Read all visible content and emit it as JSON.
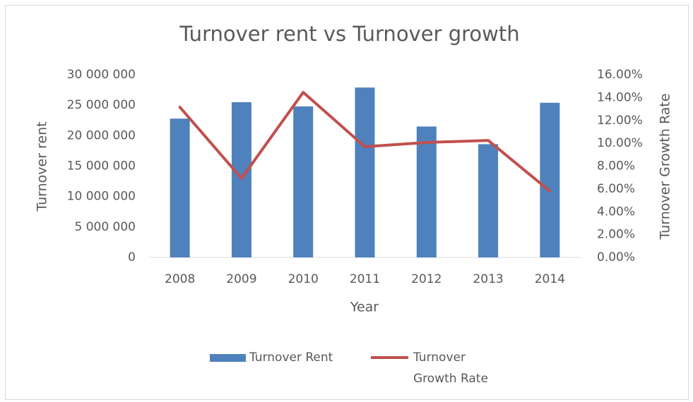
{
  "chart_data": {
    "type": "bar",
    "title": "Turnover rent vs Turnover growth",
    "x_label": "Year",
    "y_label": "Turnover rent",
    "y2_label": "Turnover Growth Rate",
    "categories": [
      "2008",
      "2009",
      "2010",
      "2011",
      "2012",
      "2013",
      "2014"
    ],
    "series": [
      {
        "name": "Turnover Rent",
        "color": "#4f81bd",
        "type": "bar",
        "values": [
          22800000,
          25500000,
          24800000,
          27900000,
          21500000,
          18600000,
          25400000
        ]
      },
      {
        "name": "Turnover Growth Rate",
        "color": "#c0504d",
        "type": "line",
        "axis": "y2",
        "values": [
          13.16,
          6.92,
          14.46,
          9.7,
          10.07,
          10.25,
          5.81
        ]
      }
    ],
    "ylim": [
      0,
      30000000
    ],
    "yticks": [
      0,
      {
        "value": 5000000,
        "label": "5 000 000"
      },
      {
        "value": 10000000,
        "label": "10 000 000"
      },
      {
        "value": 15000000,
        "label": "15 000 000"
      },
      {
        "value": 20000000,
        "label": "20 000 000"
      },
      {
        "value": 25000000,
        "label": "25 000 000"
      },
      {
        "value": 30000000,
        "label": "30 000 000"
      }
    ],
    "y2lim": [
      0,
      16
    ],
    "y2ticks": [
      {
        "value": 0,
        "label": "0.00%"
      },
      {
        "value": 2,
        "label": "2.00%"
      },
      {
        "value": 4,
        "label": "4.00%"
      },
      {
        "value": 6,
        "label": "6.00%"
      },
      {
        "value": 8,
        "label": "8.00%"
      },
      {
        "value": 10,
        "label": "10.00%"
      },
      {
        "value": 12,
        "label": "12.00%"
      },
      {
        "value": 14,
        "label": "14.00%"
      },
      {
        "value": 16,
        "label": "16.00%"
      }
    ],
    "grid": false,
    "legend": "bottom"
  }
}
